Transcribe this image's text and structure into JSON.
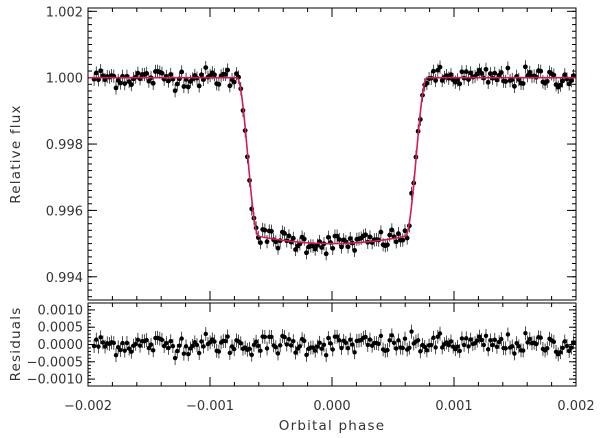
{
  "chart_data": [
    {
      "type": "scatter",
      "panel": "light-curve",
      "title": "",
      "xlabel": "",
      "ylabel": "Relative flux",
      "xlim": [
        -0.002,
        0.002
      ],
      "ylim": [
        0.9933,
        1.0021
      ],
      "yticks": [
        "1.002",
        "1.000",
        "0.998",
        "0.996",
        "0.994"
      ],
      "yticks_values": [
        1.002,
        1.0,
        0.998,
        0.996,
        0.994
      ],
      "model": {
        "type": "transit",
        "baseline": 1.0,
        "depth": 0.005,
        "t1": 0.00078,
        "t2": 0.0006
      },
      "points": {
        "count": 220,
        "x_start": -0.00195,
        "x_end": 0.00198,
        "scatter_sigma": 0.00015,
        "yerr": 0.0002
      },
      "colors": {
        "model": "#d01c5b",
        "points": "#000000"
      }
    },
    {
      "type": "scatter",
      "panel": "residuals",
      "title": "",
      "xlabel": "Orbital phase",
      "ylabel": "Residuals",
      "xlim": [
        -0.002,
        0.002
      ],
      "ylim": [
        -0.0012,
        0.0012
      ],
      "xticks": [
        "−0.002",
        "−0.001",
        "0.000",
        "0.001",
        "0.002"
      ],
      "xticks_values": [
        -0.002,
        -0.001,
        0.0,
        0.001,
        0.002
      ],
      "yticks": [
        "0.0010",
        "0.0005",
        "0.0000",
        "−0.0005",
        "−0.0010"
      ],
      "yticks_values": [
        0.001,
        0.0005,
        0.0,
        -0.0005,
        -0.001
      ],
      "colors": {
        "points": "#000000"
      }
    }
  ]
}
